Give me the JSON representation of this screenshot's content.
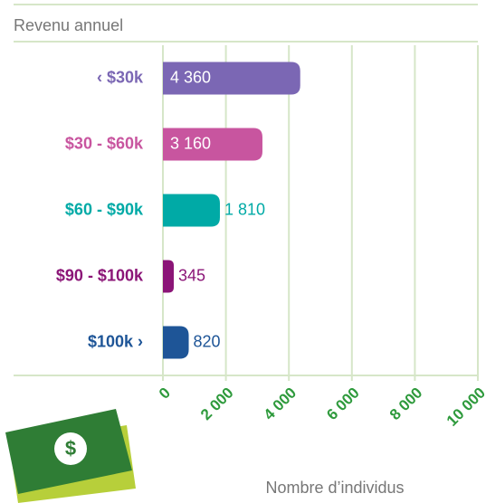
{
  "chart_data": {
    "type": "hbar",
    "title": "Revenu annuel",
    "x_label": "Nombre d’individus",
    "categories": [
      "‹ $30k",
      "$30 - $60k",
      "$60 - $90k",
      "$90 - $100k",
      "$100k ›"
    ],
    "values": [
      4360,
      3160,
      1810,
      345,
      820
    ],
    "value_labels": [
      "4 360",
      "3 160",
      "1 810",
      "345",
      "820"
    ],
    "colors": [
      "#7b67b4",
      "#c8559f",
      "#00aaa6",
      "#8b1577",
      "#1e5597"
    ],
    "xlim": [
      0,
      10000
    ],
    "xticks": [
      0,
      {
        "value": 2000,
        "label": "2 000"
      },
      {
        "value": 4000,
        "label": "4 000"
      },
      {
        "value": 6000,
        "label": "6 000"
      },
      {
        "value": 8000,
        "label": "8 000"
      },
      {
        "value": 10000,
        "label": "10 000"
      }
    ],
    "tick_color": "#2e9a3c",
    "grid": true
  }
}
